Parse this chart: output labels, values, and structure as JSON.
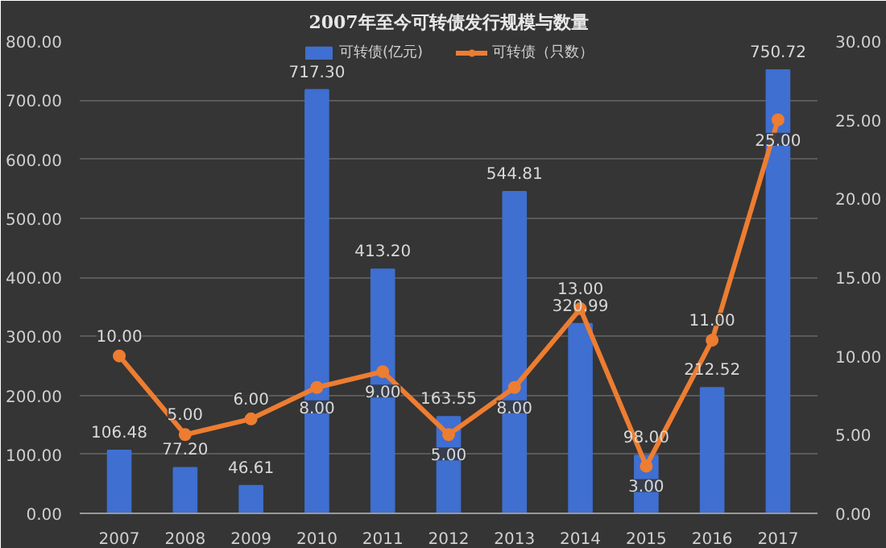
{
  "chart_data": {
    "type": "bar",
    "title": "2007年至今可转债发行规模与数量",
    "categories": [
      "2007",
      "2008",
      "2009",
      "2010",
      "2011",
      "2012",
      "2013",
      "2014",
      "2015",
      "2016",
      "2017"
    ],
    "series": [
      {
        "name": "可转债(亿元)",
        "color": "#3f6fd0",
        "values": [
          106.48,
          77.2,
          46.61,
          717.3,
          413.2,
          163.55,
          544.81,
          320.99,
          98.0,
          212.52,
          750.72
        ],
        "value_labels": [
          "106.48",
          "77.20",
          "46.61",
          "717.30",
          "413.20",
          "163.55",
          "544.81",
          "320.99",
          "98.00",
          "212.52",
          "750.72"
        ]
      },
      {
        "name": "可转债（只数）",
        "type": "line",
        "axis": "y2",
        "color": "#ed7d31",
        "marker": "circle",
        "values": [
          10,
          5,
          6,
          8,
          9,
          5,
          8,
          13,
          3,
          11,
          25
        ],
        "value_labels": [
          "10.00",
          "5.00",
          "6.00",
          "8.00",
          "9.00",
          "5.00",
          "8.00",
          "13.00",
          "3.00",
          "11.00",
          "25.00"
        ]
      }
    ],
    "ylim": [
      0,
      800
    ],
    "yticks": [
      {
        "value": 0,
        "label": "0.00"
      },
      {
        "value": 100,
        "label": "100.00"
      },
      {
        "value": 200,
        "label": "200.00"
      },
      {
        "value": 300,
        "label": "300.00"
      },
      {
        "value": 400,
        "label": "400.00"
      },
      {
        "value": 500,
        "label": "500.00"
      },
      {
        "value": 600,
        "label": "600.00"
      },
      {
        "value": 700,
        "label": "700.00"
      },
      {
        "value": 800,
        "label": "800.00"
      }
    ],
    "y2lim": [
      0,
      30
    ],
    "y2ticks": [
      {
        "value": 0,
        "label": "0.00"
      },
      {
        "value": 5,
        "label": "5.00"
      },
      {
        "value": 10,
        "label": "10.00"
      },
      {
        "value": 15,
        "label": "15.00"
      },
      {
        "value": 20,
        "label": "20.00"
      },
      {
        "value": 25,
        "label": "25.00"
      },
      {
        "value": 30,
        "label": "30.00"
      }
    ],
    "grid": "y",
    "legend": "top"
  }
}
